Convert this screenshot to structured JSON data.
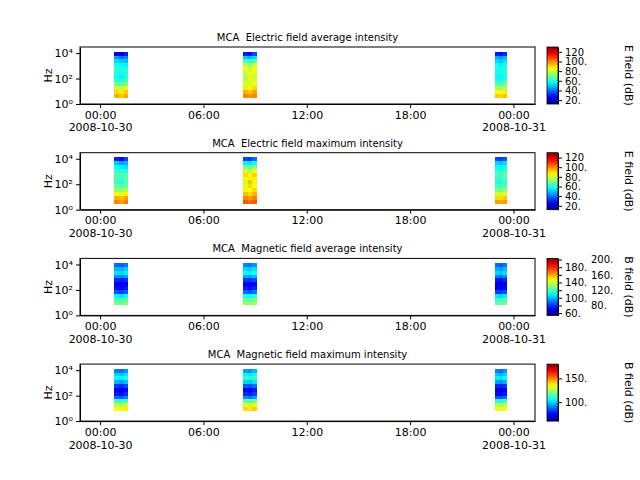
{
  "chart_data": [
    {
      "type": "heatmap",
      "title": "MCA  Electric field average intensity",
      "ylabel": "Hz",
      "log": "y",
      "xlim": [
        "2008-10-29T22:50",
        "2008-10-31T01:15"
      ],
      "xticks": [
        {
          "value": "2008-10-30T00:00",
          "label": "00:00\n2008-10-30"
        },
        {
          "value": "2008-10-30T06:00",
          "label": "06:00"
        },
        {
          "value": "2008-10-30T12:00",
          "label": "12:00"
        },
        {
          "value": "2008-10-30T18:00",
          "label": "18:00"
        },
        {
          "value": "2008-10-31T00:00",
          "label": "00:00\n2008-10-31"
        }
      ],
      "ylim": [
        1,
        30000
      ],
      "yticks": [
        {
          "value": 1,
          "label": "10⁰"
        },
        {
          "value": 100,
          "label": "10²"
        },
        {
          "value": 10000,
          "label": "10⁴"
        }
      ],
      "y_edges": [
        3,
        6,
        12,
        25,
        50,
        100,
        200,
        400,
        800,
        1600,
        3200,
        6400,
        12800
      ],
      "segments": [
        {
          "x_edges": [
            "2008-10-30T00:50",
            "2008-10-30T01:06",
            "2008-10-30T01:22",
            "2008-10-30T01:38"
          ],
          "values": [
            [
              95,
              90,
              80,
              70,
              62,
              58,
              60,
              62,
              58,
              52,
              45,
              25
            ],
            [
              92,
              88,
              78,
              68,
              60,
              55,
              58,
              60,
              56,
              50,
              40,
              20
            ],
            [
              96,
              92,
              82,
              72,
              64,
              60,
              62,
              60,
              55,
              48,
              42,
              30
            ]
          ]
        },
        {
          "x_edges": [
            "2008-10-30T08:18",
            "2008-10-30T08:34",
            "2008-10-30T08:50",
            "2008-10-30T09:06"
          ],
          "values": [
            [
              100,
              95,
              88,
              82,
              78,
              75,
              80,
              85,
              78,
              65,
              50,
              30
            ],
            [
              98,
              92,
              85,
              80,
              85,
              88,
              82,
              78,
              72,
              60,
              48,
              28
            ],
            [
              100,
              96,
              90,
              85,
              80,
              78,
              82,
              86,
              80,
              66,
              52,
              35
            ]
          ]
        },
        {
          "x_edges": [
            "2008-10-30T22:56",
            "2008-10-30T23:10",
            "2008-10-30T23:24",
            "2008-10-30T23:38"
          ],
          "values": [
            [
              92,
              86,
              76,
              66,
              60,
              56,
              58,
              60,
              57,
              52,
              46,
              30
            ],
            [
              90,
              84,
              74,
              65,
              58,
              55,
              57,
              58,
              55,
              50,
              44,
              28
            ],
            [
              93,
              87,
              78,
              68,
              62,
              58,
              60,
              62,
              58,
              53,
              47,
              32
            ]
          ]
        }
      ],
      "colorbar": {
        "label": "E field (dB)",
        "range": [
          12,
          130
        ],
        "ticks": [
          {
            "value": 20,
            "label": "20."
          },
          {
            "value": 40,
            "label": "40."
          },
          {
            "value": 60,
            "label": "60."
          },
          {
            "value": 80,
            "label": "80."
          },
          {
            "value": 100,
            "label": "100."
          },
          120
        ]
      }
    },
    {
      "type": "heatmap",
      "title": "MCA  Electric field maximum intensity",
      "ylabel": "Hz",
      "log": "y",
      "xlim": [
        "2008-10-29T22:50",
        "2008-10-31T01:15"
      ],
      "xticks": [
        {
          "value": "2008-10-30T00:00",
          "label": "00:00\n2008-10-30"
        },
        {
          "value": "2008-10-30T06:00",
          "label": "06:00"
        },
        {
          "value": "2008-10-30T12:00",
          "label": "12:00"
        },
        {
          "value": "2008-10-30T18:00",
          "label": "18:00"
        },
        {
          "value": "2008-10-31T00:00",
          "label": "00:00\n2008-10-31"
        }
      ],
      "ylim": [
        1,
        30000
      ],
      "yticks": [
        {
          "value": 1,
          "label": "10⁰"
        },
        {
          "value": 100,
          "label": "10²"
        },
        {
          "value": 10000,
          "label": "10⁴"
        }
      ],
      "y_edges": [
        3,
        6,
        12,
        25,
        50,
        100,
        200,
        400,
        800,
        1600,
        3200,
        6400,
        12800
      ],
      "segments": [
        {
          "x_edges": [
            "2008-10-30T00:50",
            "2008-10-30T01:06",
            "2008-10-30T01:22",
            "2008-10-30T01:38"
          ],
          "values": [
            [
              100,
              95,
              85,
              75,
              68,
              63,
              65,
              67,
              63,
              57,
              50,
              30
            ],
            [
              97,
              93,
              83,
              73,
              65,
              60,
              63,
              65,
              61,
              55,
              45,
              25
            ],
            [
              101,
              97,
              87,
              77,
              69,
              65,
              67,
              65,
              60,
              53,
              47,
              35
            ]
          ]
        },
        {
          "x_edges": [
            "2008-10-30T08:18",
            "2008-10-30T08:34",
            "2008-10-30T08:50",
            "2008-10-30T09:06"
          ],
          "values": [
            [
              105,
              100,
              93,
              87,
              83,
              80,
              85,
              90,
              83,
              70,
              55,
              35
            ],
            [
              103,
              97,
              90,
              85,
              90,
              93,
              87,
              83,
              77,
              65,
              53,
              33
            ],
            [
              105,
              101,
              95,
              90,
              85,
              83,
              87,
              91,
              85,
              71,
              57,
              40
            ]
          ]
        },
        {
          "x_edges": [
            "2008-10-30T22:56",
            "2008-10-30T23:10",
            "2008-10-30T23:24",
            "2008-10-30T23:38"
          ],
          "values": [
            [
              97,
              91,
              81,
              71,
              65,
              61,
              63,
              65,
              62,
              57,
              51,
              35
            ],
            [
              95,
              89,
              79,
              70,
              63,
              60,
              62,
              63,
              60,
              55,
              49,
              33
            ],
            [
              98,
              92,
              83,
              73,
              67,
              63,
              65,
              67,
              63,
              58,
              52,
              37
            ]
          ]
        }
      ],
      "colorbar": {
        "label": "E field (dB)",
        "range": [
          12,
          130
        ],
        "ticks": [
          {
            "value": 20,
            "label": "20."
          },
          {
            "value": 40,
            "label": "40."
          },
          {
            "value": 60,
            "label": "60."
          },
          {
            "value": 80,
            "label": "80."
          },
          {
            "value": 100,
            "label": "100."
          },
          120
        ]
      }
    },
    {
      "type": "heatmap",
      "title": "MCA  Magnetic field average intensity",
      "ylabel": "Hz",
      "log": "y",
      "xlim": [
        "2008-10-29T22:50",
        "2008-10-31T01:15"
      ],
      "xticks": [
        {
          "value": "2008-10-30T00:00",
          "label": "00:00\n2008-10-30"
        },
        {
          "value": "2008-10-30T06:00",
          "label": "06:00"
        },
        {
          "value": "2008-10-30T12:00",
          "label": "12:00"
        },
        {
          "value": "2008-10-30T18:00",
          "label": "18:00"
        },
        {
          "value": "2008-10-31T00:00",
          "label": "00:00\n2008-10-31"
        }
      ],
      "ylim": [
        1,
        30000
      ],
      "yticks": [
        {
          "value": 1,
          "label": "10⁰"
        },
        {
          "value": 100,
          "label": "10²"
        },
        {
          "value": 10000,
          "label": "10⁴"
        }
      ],
      "y_edges": [
        3,
        6,
        12,
        25,
        50,
        100,
        200,
        400,
        800,
        1600,
        3200,
        6400,
        12800
      ],
      "segments": [
        {
          "x_edges": [
            "2008-10-30T00:50",
            "2008-10-30T01:06",
            "2008-10-30T01:22",
            "2008-10-30T01:38"
          ],
          "values": [
            [
              null,
              128,
              122,
              108,
              84,
              74,
              70,
              78,
              94,
              106,
              100,
              88
            ],
            [
              null,
              126,
              120,
              105,
              82,
              72,
              68,
              76,
              92,
              104,
              98,
              86
            ],
            [
              null,
              130,
              124,
              110,
              86,
              76,
              72,
              80,
              96,
              108,
              102,
              90
            ]
          ]
        },
        {
          "x_edges": [
            "2008-10-30T08:18",
            "2008-10-30T08:34",
            "2008-10-30T08:50",
            "2008-10-30T09:06"
          ],
          "values": [
            [
              null,
              132,
              126,
              112,
              88,
              76,
              72,
              82,
              98,
              110,
              104,
              92
            ],
            [
              null,
              130,
              124,
              110,
              85,
              74,
              70,
              80,
              96,
              108,
              102,
              90
            ],
            [
              null,
              134,
              128,
              114,
              90,
              78,
              74,
              84,
              100,
              112,
              106,
              94
            ]
          ]
        },
        {
          "x_edges": [
            "2008-10-30T22:56",
            "2008-10-30T23:10",
            "2008-10-30T23:24",
            "2008-10-30T23:38"
          ],
          "values": [
            [
              null,
              126,
              120,
              106,
              82,
              72,
              68,
              76,
              92,
              104,
              98,
              88
            ],
            [
              null,
              124,
              118,
              104,
              80,
              70,
              66,
              74,
              90,
              102,
              96,
              86
            ],
            [
              null,
              128,
              122,
              108,
              84,
              74,
              70,
              78,
              94,
              106,
              100,
              90
            ]
          ]
        }
      ],
      "colorbar": {
        "label": "B field (dB)",
        "range": [
          54,
          203
        ],
        "ticks": [
          {
            "value": 60,
            "label": "60."
          },
          {
            "value": 80,
            "label": "80."
          },
          {
            "value": 100,
            "label": "100."
          },
          {
            "value": 120,
            "label": "120."
          },
          {
            "value": 140,
            "label": "140."
          },
          {
            "value": 160,
            "label": "160."
          },
          {
            "value": 180,
            "label": "180."
          },
          {
            "value": 200,
            "label": "200."
          }
        ]
      }
    },
    {
      "type": "heatmap",
      "title": "MCA  Magnetic field maximum intensity",
      "ylabel": "Hz",
      "log": "y",
      "xlim": [
        "2008-10-29T22:50",
        "2008-10-31T01:15"
      ],
      "xticks": [
        {
          "value": "2008-10-30T00:00",
          "label": "00:00\n2008-10-30"
        },
        {
          "value": "2008-10-30T06:00",
          "label": "06:00"
        },
        {
          "value": "2008-10-30T12:00",
          "label": "12:00"
        },
        {
          "value": "2008-10-30T18:00",
          "label": "18:00"
        },
        {
          "value": "2008-10-31T00:00",
          "label": "00:00\n2008-10-31"
        }
      ],
      "ylim": [
        1,
        30000
      ],
      "yticks": [
        {
          "value": 1,
          "label": "10⁰"
        },
        {
          "value": 100,
          "label": "10²"
        },
        {
          "value": 10000,
          "label": "10⁴"
        }
      ],
      "y_edges": [
        3,
        6,
        12,
        25,
        50,
        100,
        200,
        400,
        800,
        1600,
        3200,
        6400,
        12800
      ],
      "segments": [
        {
          "x_edges": [
            "2008-10-30T00:50",
            "2008-10-30T01:06",
            "2008-10-30T01:22",
            "2008-10-30T01:38"
          ],
          "values": [
            [
              null,
              135,
              128,
              112,
              88,
              78,
              74,
              82,
              96,
              106,
              100,
              90
            ],
            [
              null,
              133,
              126,
              110,
              86,
              76,
              72,
              80,
              94,
              104,
              98,
              88
            ],
            [
              null,
              137,
              130,
              114,
              90,
              80,
              76,
              84,
              98,
              108,
              102,
              92
            ]
          ]
        },
        {
          "x_edges": [
            "2008-10-30T08:18",
            "2008-10-30T08:34",
            "2008-10-30T08:50",
            "2008-10-30T09:06"
          ],
          "values": [
            [
              null,
              139,
              132,
              116,
              92,
              80,
              76,
              86,
              100,
              110,
              104,
              94
            ],
            [
              null,
              137,
              130,
              114,
              89,
              78,
              74,
              84,
              98,
              108,
              102,
              92
            ],
            [
              null,
              141,
              134,
              118,
              94,
              82,
              78,
              88,
              102,
              112,
              106,
              96
            ]
          ]
        },
        {
          "x_edges": [
            "2008-10-30T22:56",
            "2008-10-30T23:10",
            "2008-10-30T23:24",
            "2008-10-30T23:38"
          ],
          "values": [
            [
              null,
              133,
              126,
              110,
              86,
              76,
              72,
              80,
              94,
              104,
              98,
              90
            ],
            [
              null,
              131,
              124,
              108,
              84,
              74,
              70,
              78,
              92,
              102,
              96,
              88
            ],
            [
              null,
              135,
              128,
              112,
              88,
              78,
              74,
              82,
              96,
              106,
              100,
              92
            ]
          ]
        }
      ],
      "colorbar": {
        "label": "B field (dB)",
        "range": [
          60,
          180
        ],
        "ticks": [
          {
            "value": 100,
            "label": "100."
          },
          {
            "value": 150,
            "label": "150."
          }
        ]
      }
    }
  ]
}
